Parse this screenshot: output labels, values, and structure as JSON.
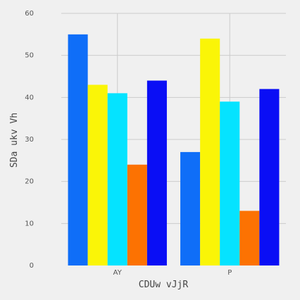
{
  "chart_data": {
    "type": "bar",
    "title": "",
    "xlabel": "CDUw vJjR",
    "ylabel": "SDa ukv Vh",
    "categories": [
      "AY",
      "P"
    ],
    "series": [
      {
        "values": [
          55,
          27
        ],
        "color": "#0f6ef8"
      },
      {
        "values": [
          43,
          54
        ],
        "color": "#faf507"
      },
      {
        "values": [
          41,
          39
        ],
        "color": "#05e3ff"
      },
      {
        "values": [
          24,
          13
        ],
        "color": "#fc7202"
      },
      {
        "values": [
          44,
          42
        ],
        "color": "#0a0ef5"
      }
    ],
    "ylim": [
      0,
      60
    ],
    "yticks": [
      0,
      10,
      20,
      30,
      40,
      50,
      60
    ],
    "grid": true,
    "legend": "none",
    "background": "#f0f0f0",
    "grid_color": "#cbcbcb"
  }
}
